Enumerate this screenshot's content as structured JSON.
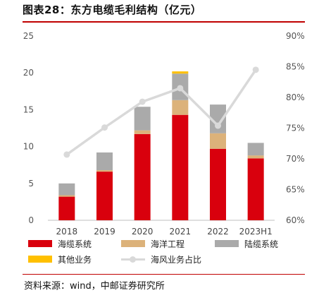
{
  "title": "图表28：东方电缆毛利结构（亿元）",
  "source": "资料来源：wind，中邮证券研究所",
  "colors": {
    "subsea_cable": "#d9000d",
    "marine_engineering": "#dcb27a",
    "land_cable": "#aaaaaa",
    "other": "#ffc000",
    "offshore_wind_share": "#d9d9d9",
    "accent_rule": "#c00000"
  },
  "legend": {
    "subsea_cable": "海缆系统",
    "marine_engineering": "海洋工程",
    "land_cable": "陆缆系统",
    "other": "其他业务",
    "offshore_wind_share": "海风业务占比"
  },
  "chart_data": {
    "type": "bar",
    "stacked": true,
    "categories": [
      "2018",
      "2019",
      "2020",
      "2021",
      "2022",
      "2023H1"
    ],
    "series": [
      {
        "name": "海缆系统",
        "values": [
          3.2,
          6.6,
          11.7,
          14.3,
          9.7,
          8.4
        ]
      },
      {
        "name": "海洋工程",
        "values": [
          0.2,
          0.2,
          0.5,
          2.0,
          2.1,
          0.4
        ]
      },
      {
        "name": "陆缆系统",
        "values": [
          1.6,
          2.4,
          3.2,
          3.6,
          3.9,
          1.7
        ]
      },
      {
        "name": "其他业务",
        "values": [
          0.0,
          0.0,
          0.0,
          0.3,
          0.0,
          0.0
        ]
      }
    ],
    "line_series": {
      "name": "海风业务占比",
      "values": [
        70.7,
        75.1,
        79.3,
        81.5,
        75.4,
        84.5
      ]
    },
    "ylim": [
      0,
      25
    ],
    "y_ticks": [
      "0",
      "5",
      "10",
      "15",
      "20",
      "25"
    ],
    "y2lim": [
      60,
      90
    ],
    "y2_ticks": [
      "60%",
      "65%",
      "70%",
      "75%",
      "80%",
      "85%",
      "90%"
    ],
    "xlabel": "",
    "ylabel": "",
    "legend_position": "bottom",
    "grid": false
  }
}
